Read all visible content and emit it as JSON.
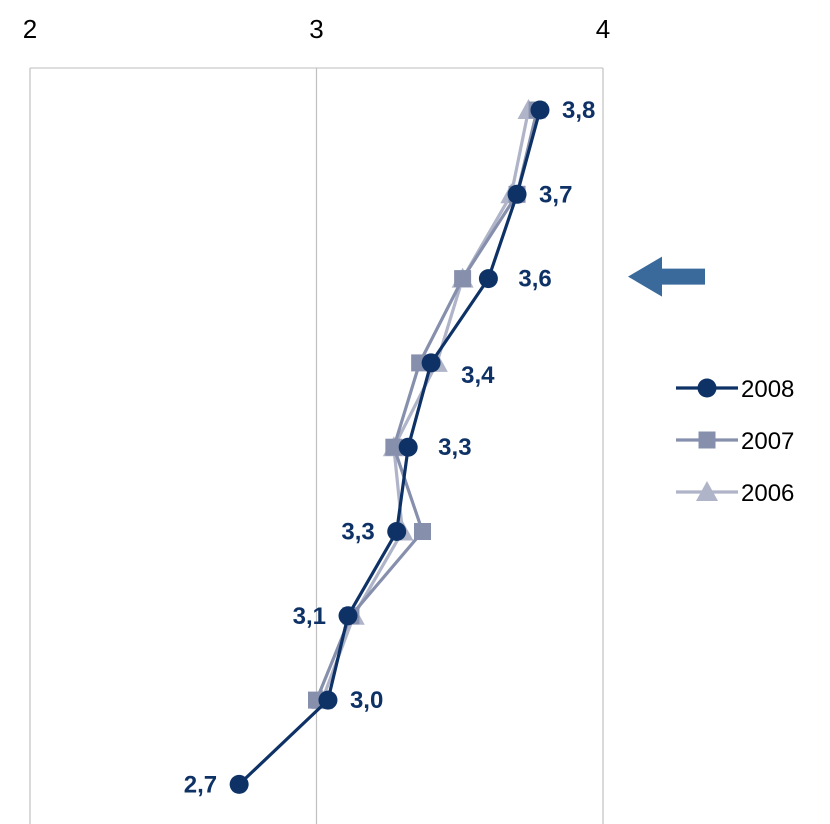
{
  "chart_data": {
    "type": "line",
    "orientation": "vertical-categories",
    "title": "",
    "xlabel": "",
    "ylabel": "",
    "xlim": [
      2,
      4
    ],
    "x_ticks": [
      "2",
      "3",
      "4"
    ],
    "grid": true,
    "legend_position": "right",
    "series": [
      {
        "name": "2008",
        "color": "#0e3266",
        "marker": "circle",
        "values": [
          3.78,
          3.7,
          3.6,
          3.4,
          3.32,
          3.28,
          3.11,
          3.04,
          2.73
        ],
        "labels": [
          "3,8",
          "3,7",
          "3,6",
          "3,4",
          "3,3",
          "3,3",
          "3,1",
          "3,0",
          "2,7"
        ]
      },
      {
        "name": "2007",
        "color": "#8690ad",
        "marker": "square",
        "values": [
          3.77,
          3.7,
          3.51,
          3.36,
          3.27,
          3.37,
          3.12,
          3.0,
          null
        ]
      },
      {
        "name": "2006",
        "color": "#afb4c8",
        "marker": "triangle",
        "values": [
          3.74,
          3.68,
          3.51,
          3.42,
          3.27,
          3.3,
          3.13,
          3.02,
          null
        ]
      }
    ],
    "highlight_arrow": {
      "category_index": 2,
      "direction": "left",
      "color": "#3a6a9c"
    }
  }
}
